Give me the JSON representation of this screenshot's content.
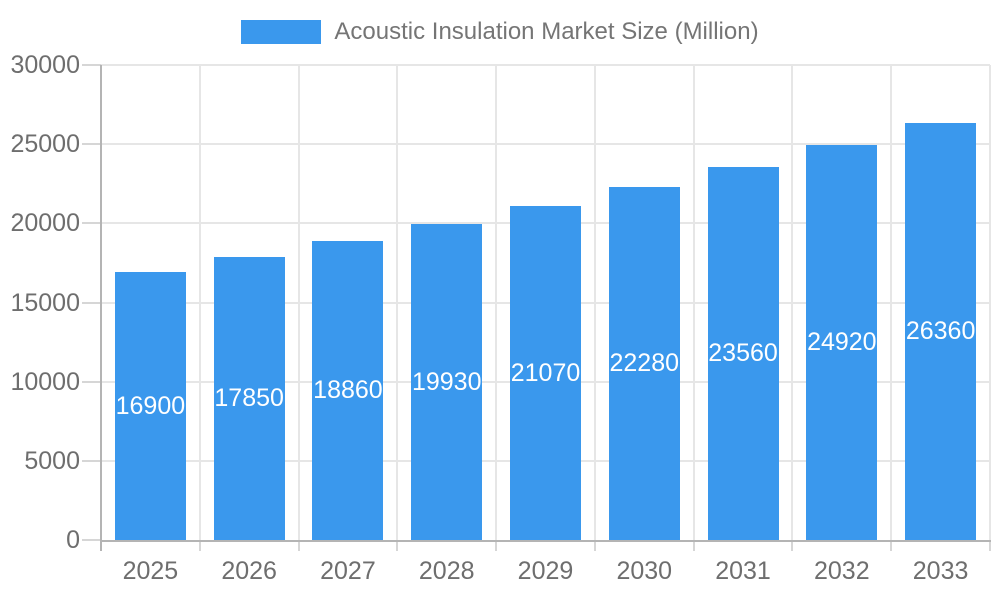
{
  "chart_data": {
    "type": "bar",
    "title": "Acoustic Insulation Market Size (Million)",
    "legend_position": "top",
    "categories": [
      "2025",
      "2026",
      "2027",
      "2028",
      "2029",
      "2030",
      "2031",
      "2032",
      "2033"
    ],
    "values": [
      16900,
      17850,
      18860,
      19930,
      21070,
      22280,
      23560,
      24920,
      26360
    ],
    "bar_value_labels": [
      "16900",
      "17850",
      "18860",
      "19930",
      "21070",
      "22280",
      "23560",
      "24920",
      "26360"
    ],
    "xlabel": "",
    "ylabel": "",
    "ylim": [
      0,
      30000
    ],
    "yticks": [
      0,
      5000,
      10000,
      15000,
      20000,
      25000,
      30000
    ],
    "ytick_labels": [
      "0",
      "5000",
      "10000",
      "15000",
      "20000",
      "25000",
      "30000"
    ],
    "grid": true,
    "colors": {
      "bar": "#3a98ed",
      "bar_label_text": "#ffffff",
      "axis_text": "#6e6e6e",
      "legend_text": "#757575",
      "gridline": "#e6e6e6",
      "axis_line": "#b4b4b4",
      "tick_line": "#d6d6d6",
      "background": "#ffffff"
    }
  }
}
